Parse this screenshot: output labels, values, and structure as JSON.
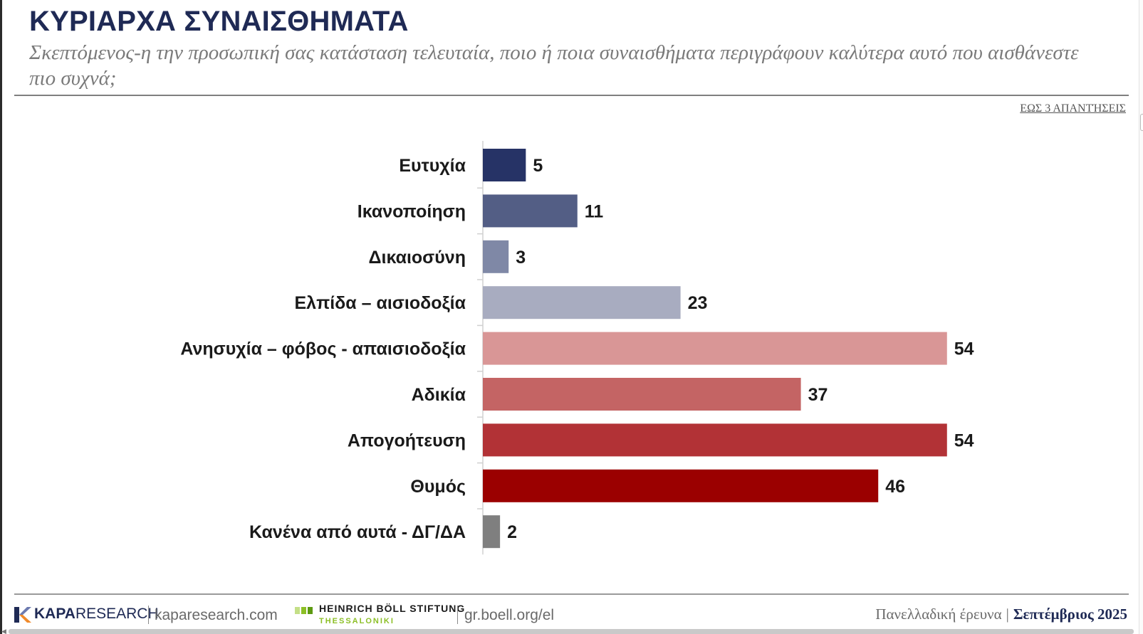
{
  "title": "ΚΥΡΙΑΡΧΑ ΣΥΝΑΙΣΘΗΜΑΤΑ",
  "subtitle": "Σκεπτόμενος-η την προσωπική σας κατάσταση τελευταία, ποιο ή ποια συναισθήματα περιγράφουν καλύτερα αυτό που αισθάνεστε πιο συχνά;",
  "note": "ΕΩΣ 3 ΑΠΑΝΤΉΣΕΙΣ",
  "chart_data": {
    "type": "bar",
    "orientation": "horizontal",
    "title": "",
    "xlabel": "",
    "ylabel": "",
    "xlim": [
      0,
      80
    ],
    "grid": false,
    "legend": "none",
    "categories": [
      "Ευτυχία",
      "Ικανοποίηση",
      "Δικαιοσύνη",
      "Ελπίδα – αισιοδοξία",
      "Ανησυχία – φόβος - απαισιοδοξία",
      "Αδικία",
      "Απογοήτευση",
      "Θυμός",
      "Κανένα από αυτά - ΔΓ/ΔΑ"
    ],
    "values": [
      5,
      11,
      3,
      23,
      54,
      37,
      54,
      46,
      2
    ],
    "colors": [
      "#263366",
      "#535e85",
      "#7f88a6",
      "#a8acc0",
      "#d99696",
      "#c46464",
      "#b23236",
      "#9b0000",
      "#7f7f7f"
    ]
  },
  "footer": {
    "kapa_brand": "KAPA",
    "kapa_brand_suffix": "RESEARCH",
    "kapa_site": "kaparesearch.com",
    "boell_name": "HEINRICH BÖLL STIFTUNG",
    "boell_city": "THESSALONIKI",
    "boell_site": "gr.boell.org/el",
    "survey_label": "Πανελλαδική έρευνα",
    "date_label": "Σεπτέμβριος 2025"
  }
}
